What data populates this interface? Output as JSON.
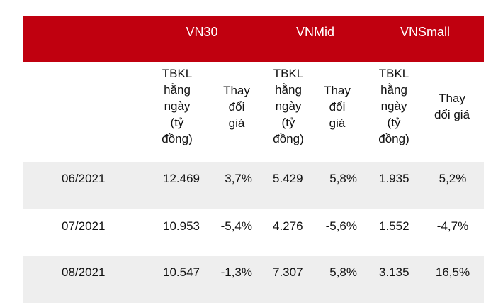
{
  "colors": {
    "header_bg": "#c0000f",
    "header_text": "#ffffff",
    "row_shade": "#eeeeee"
  },
  "groups": [
    "VN30",
    "VNMid",
    "VNSmall"
  ],
  "subheaders": {
    "volume": [
      "TBKL",
      "hằng",
      "ngày",
      "(tỷ",
      "đồng)"
    ],
    "change_a": [
      "Thay",
      "đổi",
      "giá"
    ],
    "change_b": [
      "Thay",
      "đổi giá"
    ]
  },
  "rows": [
    {
      "month": "06/2021",
      "vn30_vol": "12.469",
      "vn30_chg": "3,7%",
      "vnmid_vol": "5.429",
      "vnmid_chg": "5,8%",
      "vnsmall_vol": "1.935",
      "vnsmall_chg": "5,2%"
    },
    {
      "month": "07/2021",
      "vn30_vol": "10.953",
      "vn30_chg": "-5,4%",
      "vnmid_vol": "4.276",
      "vnmid_chg": "-5,6%",
      "vnsmall_vol": "1.552",
      "vnsmall_chg": "-4,7%"
    },
    {
      "month": "08/2021",
      "vn30_vol": "10.547",
      "vn30_chg": "-1,3%",
      "vnmid_vol": "7.307",
      "vnmid_chg": "5,8%",
      "vnsmall_vol": "3.135",
      "vnsmall_chg": "16,5%"
    }
  ]
}
